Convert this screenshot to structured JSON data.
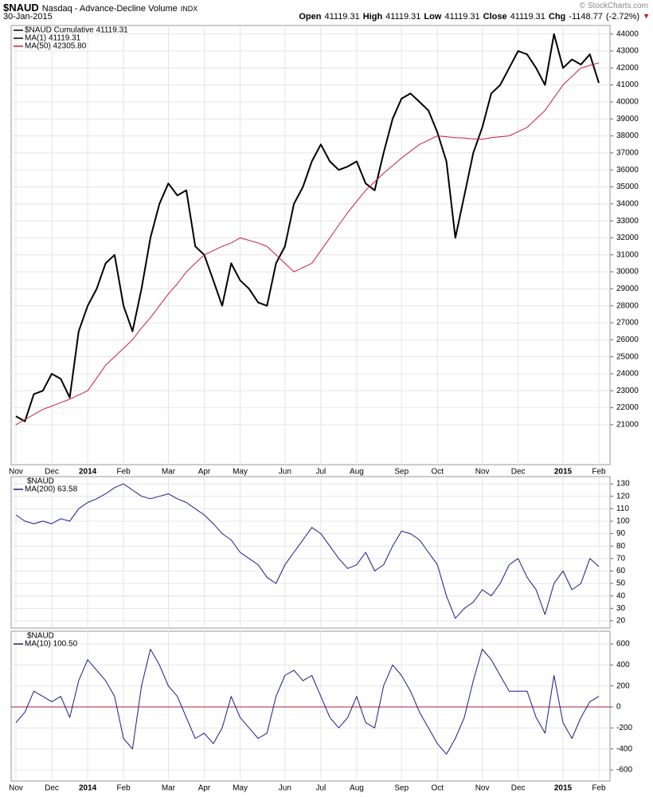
{
  "chart_data": [
    {
      "type": "line",
      "title": "$NAUD",
      "subtitle": "Nasdaq - Advance-Decline Volume",
      "exchange": "INDX",
      "date": "30-Jan-2015",
      "watermark": "© StockCharts.com",
      "stats": [
        {
          "label": "Open",
          "value": 41119.31
        },
        {
          "label": "High",
          "value": 41119.31
        },
        {
          "label": "Low",
          "value": 41119.31
        },
        {
          "label": "Close",
          "value": 41119.31
        }
      ],
      "change": {
        "label": "Chg",
        "value": -1148.77,
        "percent": {
          "value": -2.72,
          "label": "(-2.72%)"
        }
      },
      "overlay_labels": [
        "MA(1) 41119.31"
      ],
      "categories": [
        "Nov",
        null,
        null,
        null,
        "Dec",
        null,
        null,
        null,
        "2014",
        null,
        null,
        null,
        "Feb",
        null,
        null,
        null,
        null,
        "Mar",
        null,
        null,
        null,
        "Apr",
        null,
        null,
        null,
        "May",
        null,
        null,
        null,
        null,
        "Jun",
        null,
        null,
        null,
        "Jul",
        null,
        null,
        null,
        "Aug",
        null,
        null,
        null,
        null,
        "Sep",
        null,
        null,
        null,
        "Oct",
        null,
        null,
        null,
        null,
        "Nov",
        null,
        null,
        null,
        "Dec",
        null,
        null,
        null,
        null,
        "2015",
        null,
        null,
        null,
        "Feb"
      ],
      "series": [
        {
          "name": "$NAUD Cumulative 41119.31",
          "color": "#000000",
          "values": [
            21500,
            21200,
            22800,
            23000,
            24000,
            23700,
            22600,
            26500,
            28000,
            29000,
            30500,
            31000,
            28000,
            26500,
            29000,
            32000,
            34000,
            35200,
            34500,
            34800,
            31500,
            31000,
            29500,
            28000,
            30500,
            29500,
            29000,
            28200,
            28000,
            30500,
            31500,
            34000,
            35000,
            36500,
            37500,
            36500,
            36000,
            36200,
            36500,
            35200,
            34800,
            37000,
            39000,
            40200,
            40500,
            40000,
            39500,
            38200,
            36500,
            32000,
            34500,
            37000,
            38500,
            40500,
            41000,
            42000,
            43000,
            42800,
            42000,
            41000,
            44000,
            42000,
            42500,
            42200,
            42800,
            41119.31
          ]
        },
        {
          "name": "MA(50) 42305.80",
          "color": "#cc1f3a",
          "values": [
            21000,
            21300,
            21600,
            21900,
            22100,
            22300,
            22500,
            22750,
            23000,
            23750,
            24500,
            25000,
            25500,
            26000,
            26700,
            27300,
            28000,
            28700,
            29300,
            30000,
            30500,
            31000,
            31250,
            31500,
            31700,
            32000,
            31850,
            31700,
            31500,
            31000,
            30500,
            30000,
            30250,
            30500,
            31250,
            32000,
            32750,
            33500,
            34150,
            34800,
            35300,
            35800,
            36250,
            36700,
            37100,
            37500,
            37750,
            38000,
            37950,
            37900,
            37870,
            37830,
            37800,
            37900,
            37950,
            38000,
            38250,
            38500,
            39000,
            39500,
            40250,
            41000,
            41500,
            42000,
            42150,
            42305.8
          ]
        }
      ],
      "ylim": [
        18650,
        44500
      ],
      "yticks": [
        21000,
        22000,
        23000,
        24000,
        25000,
        26000,
        27000,
        28000,
        29000,
        30000,
        31000,
        32000,
        33000,
        34000,
        35000,
        36000,
        37000,
        38000,
        39000,
        40000,
        41000,
        42000,
        43000,
        44000
      ],
      "grid": true
    },
    {
      "type": "line",
      "title": "$NAUD",
      "series": [
        {
          "name": "MA(200) 63.58",
          "color": "#1a1a8c",
          "values": [
            105,
            100,
            98,
            100,
            98,
            102,
            100,
            110,
            115,
            118,
            122,
            127,
            130,
            125,
            120,
            118,
            120,
            122,
            118,
            115,
            110,
            105,
            98,
            90,
            85,
            75,
            70,
            65,
            55,
            50,
            65,
            75,
            85,
            95,
            90,
            80,
            70,
            62,
            65,
            75,
            60,
            65,
            80,
            92,
            90,
            85,
            75,
            65,
            40,
            22,
            30,
            35,
            45,
            40,
            50,
            65,
            70,
            55,
            45,
            25,
            50,
            60,
            45,
            50,
            70,
            63.58
          ]
        }
      ],
      "ylim": [
        14.2,
        135.8
      ],
      "yticks": [
        20,
        30,
        40,
        50,
        60,
        70,
        80,
        90,
        100,
        110,
        120,
        130
      ],
      "grid": true
    },
    {
      "type": "line",
      "title": "$NAUD",
      "categories": [
        "Nov",
        null,
        null,
        null,
        "Dec",
        null,
        null,
        null,
        "2014",
        null,
        null,
        null,
        "Feb",
        null,
        null,
        null,
        null,
        "Mar",
        null,
        null,
        null,
        "Apr",
        null,
        null,
        null,
        "May",
        null,
        null,
        null,
        null,
        "Jun",
        null,
        null,
        null,
        "Jul",
        null,
        null,
        null,
        "Aug",
        null,
        null,
        null,
        null,
        "Sep",
        null,
        null,
        null,
        "Oct",
        null,
        null,
        null,
        null,
        "Nov",
        null,
        null,
        null,
        "Dec",
        null,
        null,
        null,
        null,
        "2015",
        null,
        null,
        null,
        "Feb"
      ],
      "series": [
        {
          "name": "MA(10) 100.50",
          "color": "#1a1a8c",
          "values": [
            -150,
            -50,
            150,
            100,
            50,
            100,
            -100,
            250,
            450,
            350,
            250,
            100,
            -300,
            -400,
            200,
            550,
            400,
            200,
            100,
            -100,
            -300,
            -250,
            -350,
            -200,
            100,
            -100,
            -200,
            -300,
            -250,
            100,
            300,
            350,
            250,
            300,
            100,
            -100,
            -200,
            -100,
            100,
            -150,
            -200,
            200,
            400,
            300,
            150,
            -50,
            -200,
            -350,
            -450,
            -300,
            -100,
            250,
            550,
            450,
            300,
            150,
            150,
            150,
            -100,
            -250,
            300,
            -150,
            -300,
            -100,
            50,
            100.5
          ]
        }
      ],
      "ylim": [
        -706,
        721
      ],
      "yticks": [
        -600,
        -400,
        -200,
        0,
        200,
        400,
        600
      ],
      "zero_line_color": "#a0203a",
      "grid": true
    }
  ]
}
